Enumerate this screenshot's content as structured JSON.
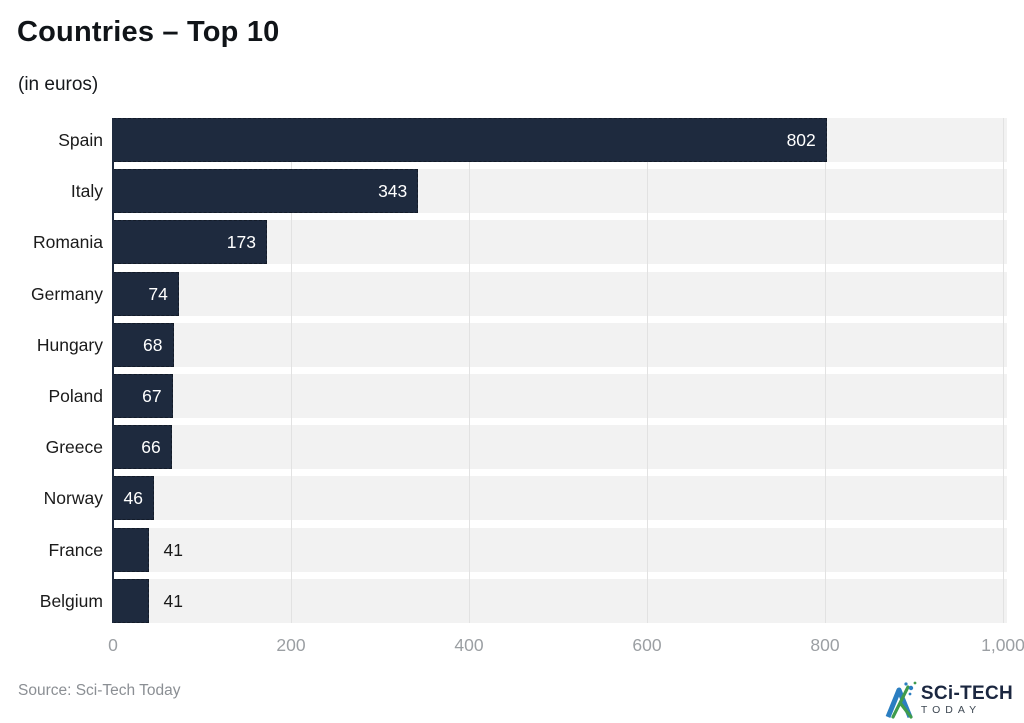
{
  "header": {
    "title": "Countries – Top 10",
    "subtitle": "(in euros)"
  },
  "chart_data": {
    "type": "bar",
    "orientation": "horizontal",
    "title": "Countries – Top 10",
    "subtitle": "(in euros)",
    "categories": [
      "Spain",
      "Italy",
      "Romania",
      "Germany",
      "Hungary",
      "Poland",
      "Greece",
      "Norway",
      "France",
      "Belgium"
    ],
    "values": [
      802,
      343,
      173,
      74,
      68,
      67,
      66,
      46,
      41,
      41
    ],
    "xlabel": "",
    "ylabel": "",
    "xlim": [
      0,
      1000
    ],
    "x_tick_labels": [
      "0",
      "200",
      "400",
      "600",
      "800",
      "1,000"
    ],
    "x_tick_values": [
      0,
      200,
      400,
      600,
      800,
      1000
    ],
    "grid": true,
    "legend": false,
    "colors": {
      "bar": "#1e2a3e",
      "row_band": "#f2f2f2",
      "gridline": "#e2e2e2",
      "axis_line": "#1e2a3e",
      "value_label_inside": "#ffffff",
      "value_label_outside": "#1a1a1a",
      "tick_label": "#9b9fa3"
    }
  },
  "footer": {
    "source": "Source: Sci-Tech Today",
    "logo_line1": "SCi-TECH",
    "logo_line2": "TODAY"
  }
}
